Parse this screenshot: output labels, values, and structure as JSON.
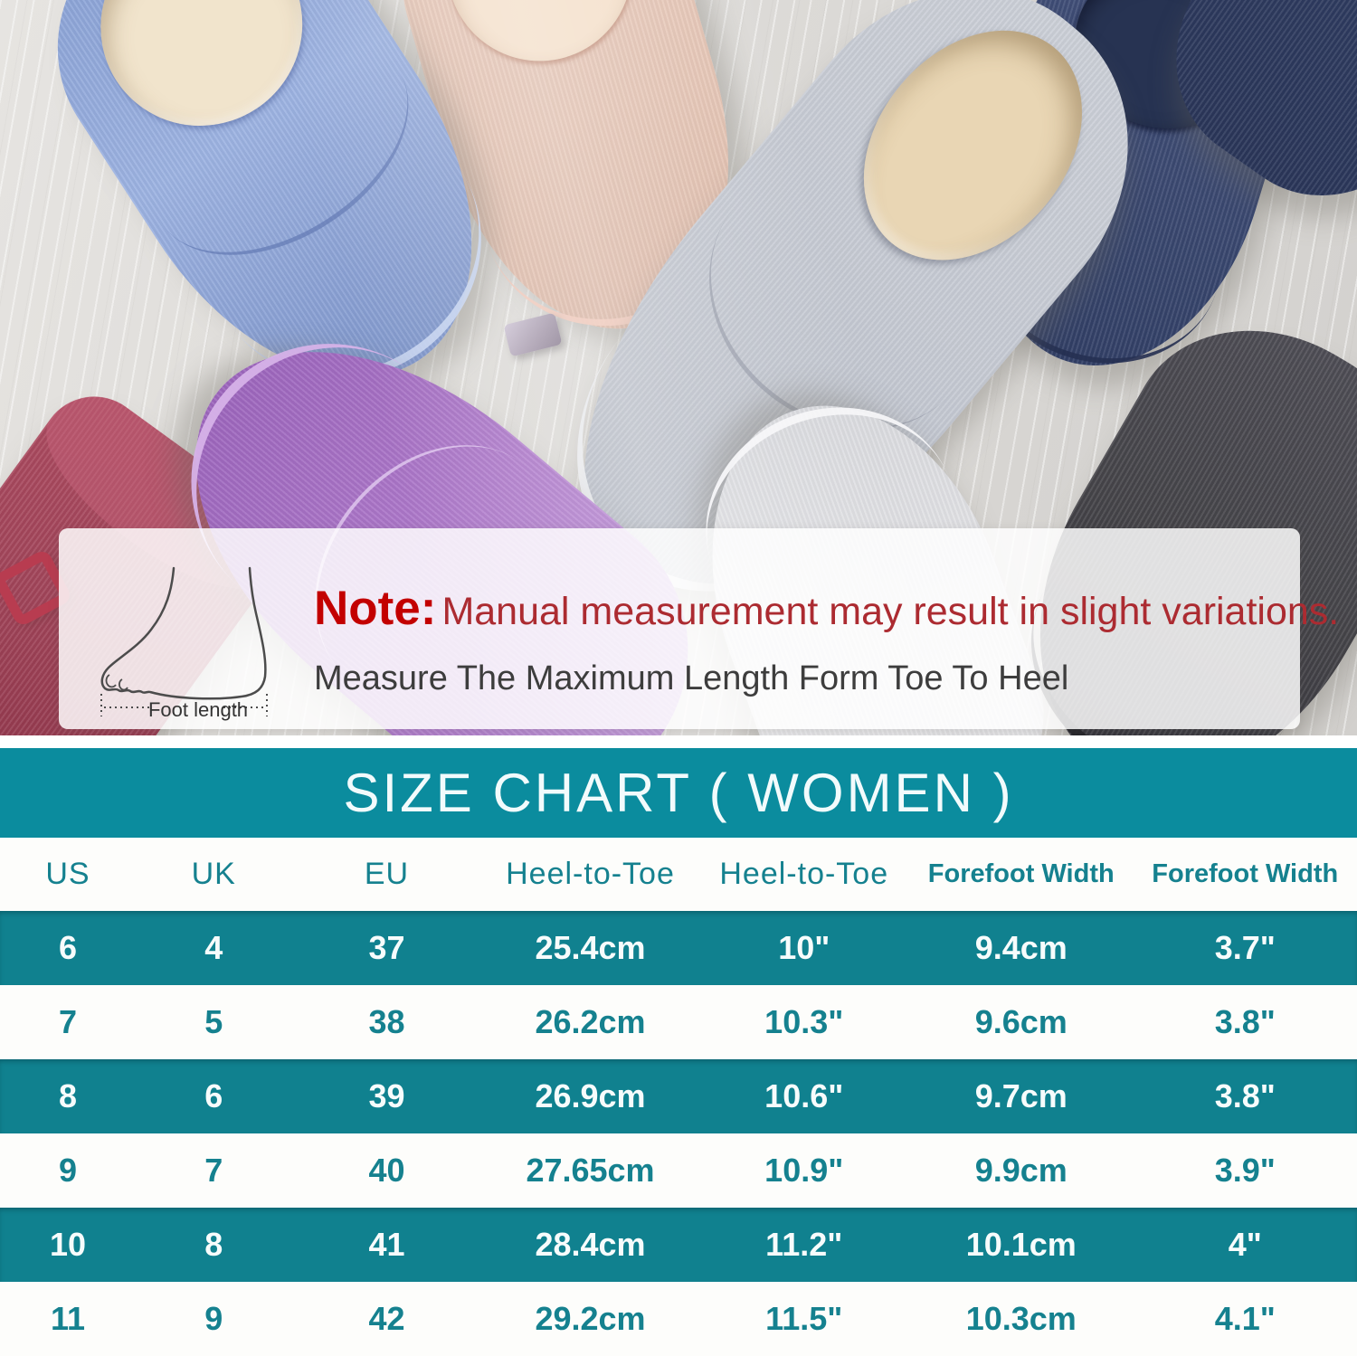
{
  "photo": {
    "slipper_colors": [
      "blue",
      "pink",
      "gray",
      "navy",
      "purple",
      "burgundy",
      "white",
      "charcoal"
    ]
  },
  "note": {
    "label": "Note:",
    "warning": "Manual measurement may result in slight variations.",
    "instruction": "Measure The Maximum Length Form Toe To Heel",
    "diagram_caption": "Foot length"
  },
  "size_chart": {
    "title": "SIZE CHART ( WOMEN )",
    "columns": [
      "US",
      "UK",
      "EU",
      "Heel-to-Toe",
      "Heel-to-Toe",
      "Forefoot Width",
      "Forefoot Width"
    ],
    "rows": [
      [
        "6",
        "4",
        "37",
        "25.4cm",
        "10\"",
        "9.4cm",
        "3.7\""
      ],
      [
        "7",
        "5",
        "38",
        "26.2cm",
        "10.3\"",
        "9.6cm",
        "3.8\""
      ],
      [
        "8",
        "6",
        "39",
        "26.9cm",
        "10.6\"",
        "9.7cm",
        "3.8\""
      ],
      [
        "9",
        "7",
        "40",
        "27.65cm",
        "10.9\"",
        "9.9cm",
        "3.9\""
      ],
      [
        "10",
        "8",
        "41",
        "28.4cm",
        "11.2\"",
        "10.1cm",
        "4\""
      ],
      [
        "11",
        "9",
        "42",
        "29.2cm",
        "11.5\"",
        "10.3cm",
        "4.1\""
      ]
    ]
  },
  "chart_data": {
    "type": "table",
    "title": "SIZE CHART ( WOMEN )",
    "columns": [
      "US",
      "UK",
      "EU",
      "Heel-to-Toe (cm)",
      "Heel-to-Toe (inches)",
      "Forefoot Width (cm)",
      "Forefoot Width (inches)"
    ],
    "rows": [
      [
        "6",
        "4",
        "37",
        "25.4cm",
        "10\"",
        "9.4cm",
        "3.7\""
      ],
      [
        "7",
        "5",
        "38",
        "26.2cm",
        "10.3\"",
        "9.6cm",
        "3.8\""
      ],
      [
        "8",
        "6",
        "39",
        "26.9cm",
        "10.6\"",
        "9.7cm",
        "3.8\""
      ],
      [
        "9",
        "7",
        "40",
        "27.65cm",
        "10.9\"",
        "9.9cm",
        "3.9\""
      ],
      [
        "10",
        "8",
        "41",
        "28.4cm",
        "11.2\"",
        "10.1cm",
        "4\""
      ],
      [
        "11",
        "9",
        "42",
        "29.2cm",
        "11.5\"",
        "10.3cm",
        "4.1\""
      ]
    ]
  },
  "colors": {
    "banner_teal": "#0b8c9e",
    "row_teal": "#10818f",
    "table_text_teal": "#15818f",
    "note_label_red": "#c30000",
    "note_warning_red": "#ac2b31",
    "instruction_gray": "#3d3d3d"
  }
}
